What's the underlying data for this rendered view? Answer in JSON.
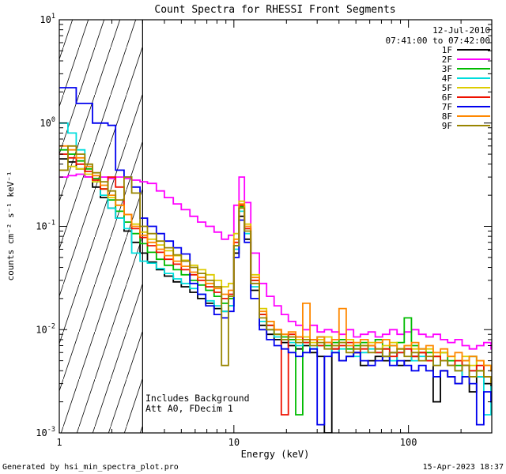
{
  "title": "Count Spectra for RHESSI Front Segments",
  "annotations": {
    "date": "12-Jul-2010",
    "time_range": "07:41:00 to 07:42:00",
    "date_color": "#cc4400",
    "background_note": "Includes Background",
    "att_note": "Att A0, FDecim 1"
  },
  "footer": {
    "generated_by": "Generated by hsi_min_spectra_plot.pro",
    "timestamp": "15-Apr-2023 18:37"
  },
  "chart_data": {
    "type": "line",
    "mode": "histogram-steps",
    "x_scale": "log",
    "y_scale": "log",
    "xlabel": "Energy (keV)",
    "ylabel": "counts cm⁻² s⁻¹ keV⁻¹",
    "xlim": [
      1,
      300
    ],
    "ylim": [
      0.001,
      10
    ],
    "x_ticks": [
      1,
      10,
      100
    ],
    "y_ticks": [
      0.001,
      0.01,
      0.1,
      1,
      10
    ],
    "grid": false,
    "legend_position": "top-right-inside",
    "legend_label_color": "#cc4400",
    "hatch_region": {
      "x_start": 1,
      "x_end": 3
    },
    "energies": [
      1.0,
      1.12,
      1.25,
      1.4,
      1.55,
      1.72,
      1.9,
      2.1,
      2.35,
      2.6,
      2.9,
      3.2,
      3.6,
      4.0,
      4.5,
      5.0,
      5.6,
      6.2,
      6.9,
      7.7,
      8.5,
      9.3,
      10.0,
      10.7,
      11.5,
      12.5,
      14.0,
      15.4,
      17.0,
      18.7,
      20.5,
      22.6,
      24.8,
      27.3,
      30.0,
      33.0,
      36.4,
      40.0,
      44.0,
      48.5,
      53.0,
      58.7,
      64.5,
      71.0,
      78.0,
      86.0,
      94.6,
      104.0,
      114.5,
      126.0,
      138.6,
      152.5,
      167.7,
      184.5,
      203.0,
      223.0,
      245.6,
      270.0,
      297.0
    ],
    "series": [
      {
        "name": "1F",
        "color": "#000000",
        "values": [
          0.45,
          0.42,
          0.36,
          0.3,
          0.24,
          0.19,
          0.15,
          0.12,
          0.09,
          0.07,
          0.055,
          0.045,
          0.038,
          0.033,
          0.029,
          0.026,
          0.023,
          0.02,
          0.018,
          0.016,
          0.015,
          0.017,
          0.055,
          0.125,
          0.075,
          0.024,
          0.011,
          0.009,
          0.008,
          0.0075,
          0.007,
          0.0065,
          0.007,
          0.006,
          0.0055,
          0.001,
          0.0065,
          0.005,
          0.0055,
          0.006,
          0.0045,
          0.005,
          0.0055,
          0.005,
          0.006,
          0.0045,
          0.005,
          0.0055,
          0.006,
          0.005,
          0.002,
          0.004,
          0.0035,
          0.003,
          0.0045,
          0.0025,
          0.0035,
          0.003,
          0.0025
        ]
      },
      {
        "name": "2F",
        "color": "#ff00ff",
        "values": [
          0.3,
          0.31,
          0.32,
          0.3,
          0.29,
          0.3,
          0.29,
          0.3,
          0.29,
          0.28,
          0.27,
          0.26,
          0.22,
          0.19,
          0.165,
          0.145,
          0.125,
          0.11,
          0.1,
          0.088,
          0.075,
          0.082,
          0.16,
          0.3,
          0.17,
          0.055,
          0.028,
          0.021,
          0.017,
          0.014,
          0.012,
          0.011,
          0.01,
          0.011,
          0.0095,
          0.01,
          0.0095,
          0.009,
          0.01,
          0.0085,
          0.009,
          0.0095,
          0.0085,
          0.009,
          0.01,
          0.009,
          0.0095,
          0.01,
          0.009,
          0.0085,
          0.009,
          0.008,
          0.0075,
          0.008,
          0.007,
          0.0065,
          0.007,
          0.0075,
          0.0065
        ]
      },
      {
        "name": "3F",
        "color": "#00bb00",
        "values": [
          0.55,
          0.5,
          0.43,
          0.36,
          0.29,
          0.23,
          0.18,
          0.14,
          0.11,
          0.085,
          0.068,
          0.056,
          0.048,
          0.042,
          0.038,
          0.034,
          0.03,
          0.027,
          0.024,
          0.021,
          0.018,
          0.02,
          0.065,
          0.155,
          0.095,
          0.03,
          0.014,
          0.011,
          0.009,
          0.0085,
          0.008,
          0.0015,
          0.0075,
          0.008,
          0.0085,
          0.007,
          0.0075,
          0.008,
          0.0065,
          0.007,
          0.0075,
          0.007,
          0.008,
          0.0065,
          0.007,
          0.0075,
          0.013,
          0.007,
          0.0065,
          0.006,
          0.0055,
          0.006,
          0.005,
          0.0045,
          0.005,
          0.0055,
          0.004,
          0.0045,
          0.004
        ]
      },
      {
        "name": "4F",
        "color": "#00dddd",
        "values": [
          1.0,
          0.8,
          0.55,
          0.38,
          0.27,
          0.2,
          0.15,
          0.12,
          0.095,
          0.055,
          0.046,
          0.044,
          0.039,
          0.035,
          0.031,
          0.028,
          0.025,
          0.022,
          0.019,
          0.017,
          0.015,
          0.017,
          0.06,
          0.14,
          0.085,
          0.026,
          0.012,
          0.01,
          0.0085,
          0.008,
          0.0075,
          0.007,
          0.0075,
          0.0065,
          0.007,
          0.0075,
          0.006,
          0.0065,
          0.007,
          0.0055,
          0.006,
          0.0065,
          0.006,
          0.0055,
          0.005,
          0.006,
          0.0065,
          0.005,
          0.0055,
          0.005,
          0.0045,
          0.005,
          0.0045,
          0.004,
          0.0035,
          0.004,
          0.0035,
          0.0015,
          0.0028
        ]
      },
      {
        "name": "5F",
        "color": "#ddcc00",
        "values": [
          0.35,
          0.38,
          0.36,
          0.32,
          0.27,
          0.23,
          0.19,
          0.16,
          0.13,
          0.105,
          0.088,
          0.075,
          0.066,
          0.058,
          0.052,
          0.047,
          0.042,
          0.038,
          0.034,
          0.03,
          0.026,
          0.028,
          0.085,
          0.175,
          0.105,
          0.034,
          0.016,
          0.012,
          0.01,
          0.009,
          0.0085,
          0.008,
          0.0085,
          0.0075,
          0.008,
          0.0085,
          0.007,
          0.0075,
          0.008,
          0.0065,
          0.007,
          0.0075,
          0.0065,
          0.007,
          0.0075,
          0.0065,
          0.007,
          0.0065,
          0.006,
          0.0065,
          0.0055,
          0.006,
          0.0055,
          0.005,
          0.0055,
          0.0045,
          0.005,
          0.0045,
          0.004
        ]
      },
      {
        "name": "6F",
        "color": "#ee1100",
        "values": [
          0.5,
          0.46,
          0.4,
          0.34,
          0.28,
          0.23,
          0.3,
          0.24,
          0.13,
          0.095,
          0.078,
          0.065,
          0.056,
          0.048,
          0.043,
          0.038,
          0.034,
          0.03,
          0.026,
          0.023,
          0.02,
          0.022,
          0.07,
          0.16,
          0.095,
          0.03,
          0.014,
          0.011,
          0.01,
          0.0015,
          0.009,
          0.0085,
          0.0075,
          0.008,
          0.007,
          0.0075,
          0.0065,
          0.007,
          0.0075,
          0.006,
          0.0065,
          0.007,
          0.006,
          0.0065,
          0.0055,
          0.006,
          0.0065,
          0.0055,
          0.006,
          0.005,
          0.0055,
          0.005,
          0.0045,
          0.005,
          0.0045,
          0.004,
          0.0045,
          0.0035,
          0.003
        ]
      },
      {
        "name": "7F",
        "color": "#0000ee",
        "values": [
          2.2,
          2.2,
          1.55,
          1.55,
          1.0,
          1.0,
          0.95,
          0.35,
          0.3,
          0.24,
          0.12,
          0.1,
          0.085,
          0.072,
          0.062,
          0.054,
          0.028,
          0.022,
          0.017,
          0.014,
          0.013,
          0.015,
          0.05,
          0.115,
          0.07,
          0.02,
          0.01,
          0.008,
          0.007,
          0.0065,
          0.006,
          0.0055,
          0.006,
          0.0065,
          0.0012,
          0.0055,
          0.006,
          0.005,
          0.0055,
          0.006,
          0.005,
          0.0045,
          0.005,
          0.0055,
          0.0045,
          0.005,
          0.0045,
          0.004,
          0.0045,
          0.004,
          0.0035,
          0.004,
          0.0035,
          0.003,
          0.0035,
          0.003,
          0.0012,
          0.0025,
          0.002
        ]
      },
      {
        "name": "8F",
        "color": "#ff8800",
        "values": [
          0.6,
          0.55,
          0.46,
          0.38,
          0.31,
          0.25,
          0.2,
          0.16,
          0.13,
          0.1,
          0.082,
          0.07,
          0.06,
          0.052,
          0.046,
          0.041,
          0.036,
          0.032,
          0.028,
          0.025,
          0.022,
          0.024,
          0.075,
          0.165,
          0.1,
          0.032,
          0.015,
          0.012,
          0.01,
          0.009,
          0.0095,
          0.0085,
          0.018,
          0.008,
          0.0085,
          0.0075,
          0.008,
          0.016,
          0.007,
          0.0075,
          0.008,
          0.007,
          0.0075,
          0.008,
          0.007,
          0.0065,
          0.007,
          0.0075,
          0.0065,
          0.007,
          0.006,
          0.0065,
          0.0055,
          0.006,
          0.005,
          0.0055,
          0.005,
          0.0045,
          0.004
        ]
      },
      {
        "name": "9F",
        "color": "#998500",
        "values": [
          0.35,
          0.6,
          0.5,
          0.4,
          0.33,
          0.27,
          0.22,
          0.18,
          0.3,
          0.21,
          0.1,
          0.085,
          0.072,
          0.062,
          0.053,
          0.046,
          0.04,
          0.035,
          0.03,
          0.026,
          0.0045,
          0.021,
          0.065,
          0.15,
          0.09,
          0.028,
          0.013,
          0.01,
          0.009,
          0.008,
          0.0085,
          0.0075,
          0.008,
          0.007,
          0.0075,
          0.0065,
          0.007,
          0.0075,
          0.006,
          0.0065,
          0.007,
          0.006,
          0.0065,
          0.0055,
          0.006,
          0.0065,
          0.0055,
          0.006,
          0.005,
          0.0055,
          0.0045,
          0.005,
          0.0045,
          0.004,
          0.0045,
          0.0035,
          0.004,
          0.0035,
          0.003
        ]
      }
    ]
  }
}
